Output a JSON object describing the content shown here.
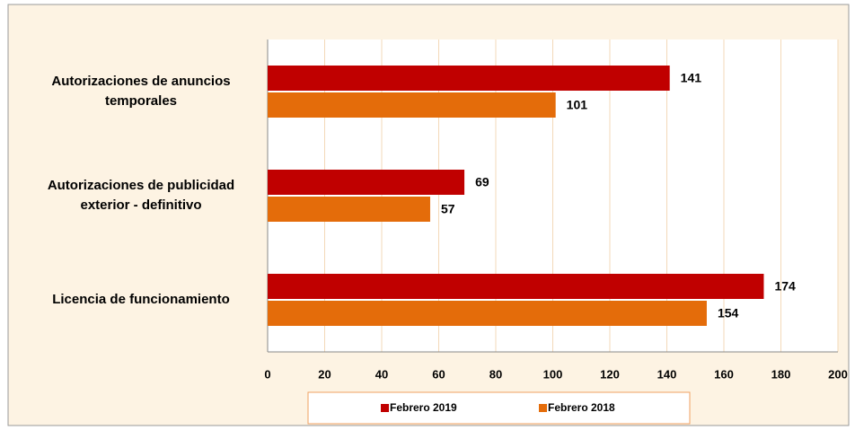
{
  "chart_data": {
    "type": "bar",
    "orientation": "horizontal",
    "categories": [
      "Autorizaciones de anuncios temporales",
      "Autorizaciones de publicidad exterior - definitivo",
      "Licencia de funcionamiento"
    ],
    "series": [
      {
        "name": "Febrero 2019",
        "color": "#c00000",
        "values": [
          141,
          69,
          174
        ]
      },
      {
        "name": "Febrero 2018",
        "color": "#e46c0a",
        "values": [
          101,
          57,
          154
        ]
      }
    ],
    "xlim": [
      0,
      200
    ],
    "xticks": [
      0,
      20,
      40,
      60,
      80,
      100,
      120,
      140,
      160,
      180,
      200
    ],
    "grid": true,
    "legend": "bottom"
  }
}
